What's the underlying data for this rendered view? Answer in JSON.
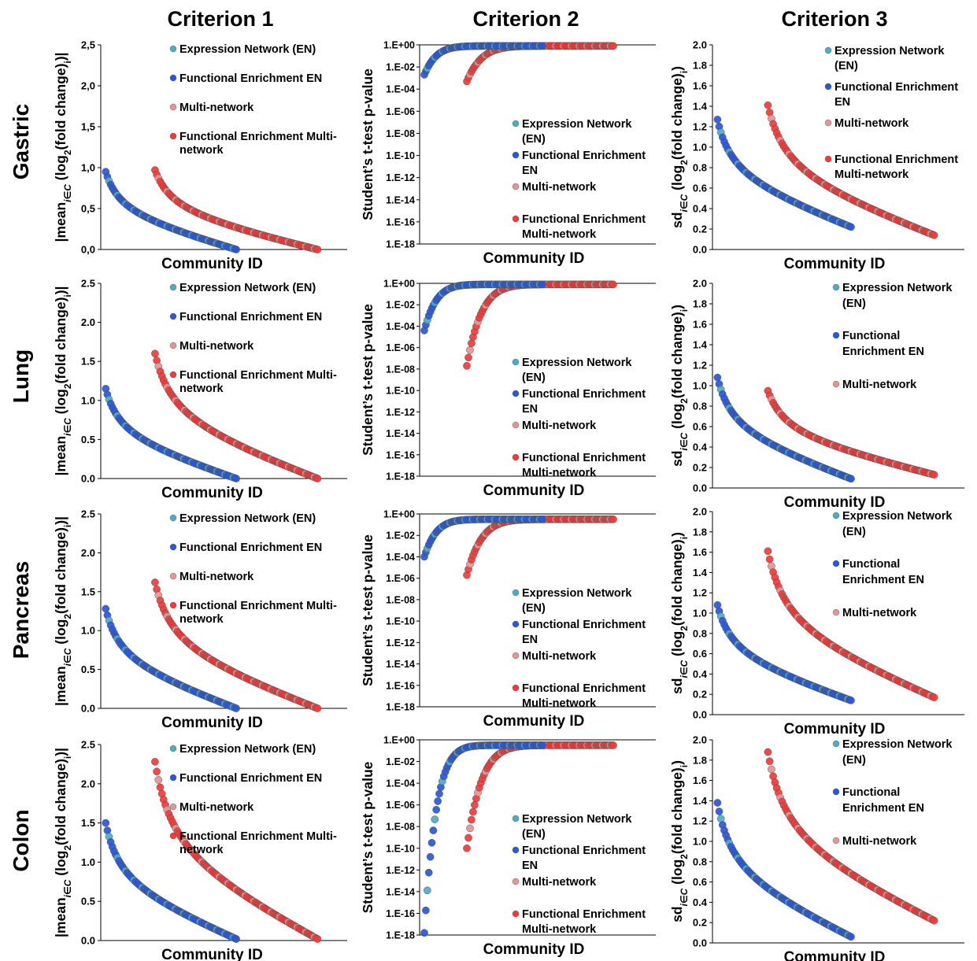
{
  "columns": [
    "Criterion 1",
    "Criterion 2",
    "Criterion 3"
  ],
  "rows": [
    "Gastric",
    "Lung",
    "Pancreas",
    "Colon"
  ],
  "colors": {
    "expression_network": "#4bacc6",
    "functional_enrichment_en": "#2a57d8",
    "multi_network": "#e59494",
    "functional_enrichment_multi": "#f13a3a"
  },
  "x_label": "Community ID",
  "y_label_c1": "|mean",
  "y_label_c1_sub": "i∈C",
  "y_label_c1_rest": " (log",
  "y_label_c1_sub2": "2",
  "y_label_c1_end": "(fold change)",
  "y_label_c1_sub3": "i",
  "y_label_c1_close": ")|",
  "y_label_c2": "Student’s t-test p-value",
  "y_label_c3": "sd",
  "y_label_c3_sub": "i∈C",
  "y_label_c3_rest": " (log",
  "y_label_c3_sub2": "2",
  "y_label_c3_end": "(fold change)",
  "y_label_c3_sub3": "i",
  "y_label_c3_close": ")",
  "legend_c1": [
    "Expression Network (EN)",
    "Functional Enrichment EN",
    "Multi-network",
    "Functional Enrichment Multi-",
    "network"
  ],
  "legend_c2": [
    "Expression Network",
    "(EN)",
    "Functional Enrichment",
    "EN",
    "Multi-network",
    "Functional Enrichment",
    "Multi-network"
  ],
  "legend_c3_gastric": [
    "Expression Network",
    "(EN)",
    "Functional Enrichment",
    "EN",
    "Multi-network",
    "Functional Enrichment",
    "Multi-network"
  ],
  "legend_c3_other": [
    "Expression Network",
    "(EN)",
    "Functional",
    "Enrichment EN",
    "Multi-network"
  ],
  "ticks_c1_gastric": [
    "0,0",
    "0,5",
    "1,0",
    "1,5",
    "2,0",
    "2,5"
  ],
  "ticks_c1_other": [
    "0.0",
    "0.5",
    "1.0",
    "1.5",
    "2.0",
    "2.5"
  ],
  "ticks_c2": [
    "1.E-18",
    "1.E-16",
    "1.E-14",
    "1.E-12",
    "1.E-10",
    "1.E-08",
    "1.E-06",
    "1.E-04",
    "1.E-02",
    "1.E+00"
  ],
  "ticks_c3": [
    "0.0",
    "0.2",
    "0.4",
    "0.6",
    "0.8",
    "1.0",
    "1.2",
    "1.4",
    "1.6",
    "1.8",
    "2.0"
  ],
  "chart_data": [
    {
      "panel": "Gastric / Criterion 1",
      "type": "scatter",
      "ylim": [
        0,
        2.5
      ],
      "series": [
        {
          "legend": "Expression Network (EN) + Functional Enrichment EN",
          "start": 0.95,
          "end": 0.0,
          "shape": 0.15,
          "n": 80
        },
        {
          "legend": "Multi-network + Functional Enrichment Multi-network",
          "start": 0.97,
          "end": 0.0,
          "shape": 0.22,
          "n": 95
        }
      ]
    },
    {
      "panel": "Gastric / Criterion 2",
      "type": "scatter",
      "ylim_log10": [
        -18,
        0
      ],
      "series": [
        {
          "legend": "EN",
          "start_log10": -2.7,
          "end_log10": -0.1,
          "n": 80
        },
        {
          "legend": "Multi-network",
          "start_log10": -3.3,
          "end_log10": -0.1,
          "n": 95
        }
      ]
    },
    {
      "panel": "Gastric / Criterion 3",
      "type": "scatter",
      "ylim": [
        0,
        2.0
      ],
      "series": [
        {
          "legend": "EN",
          "start": 1.27,
          "end": 0.22,
          "n": 80
        },
        {
          "legend": "Multi-network",
          "start": 1.41,
          "end": 0.14,
          "n": 95
        }
      ]
    },
    {
      "panel": "Lung / Criterion 1",
      "type": "scatter",
      "ylim": [
        0,
        2.5
      ],
      "series": [
        {
          "legend": "EN",
          "start": 1.15,
          "end": 0.0,
          "n": 80
        },
        {
          "legend": "Multi-network",
          "start": 1.6,
          "end": 0.0,
          "n": 95
        }
      ]
    },
    {
      "panel": "Lung / Criterion 2",
      "type": "scatter",
      "ylim_log10": [
        -18,
        0
      ],
      "series": [
        {
          "legend": "EN",
          "start_log10": -4.4,
          "end_log10": -0.1,
          "n": 80
        },
        {
          "legend": "Multi-network",
          "start_log10": -7.7,
          "end_log10": -0.1,
          "n": 95
        }
      ]
    },
    {
      "panel": "Lung / Criterion 3",
      "type": "scatter",
      "ylim": [
        0,
        2.0
      ],
      "series": [
        {
          "legend": "EN",
          "start": 1.08,
          "end": 0.09,
          "n": 80
        },
        {
          "legend": "Multi-network",
          "start": 0.95,
          "end": 0.13,
          "n": 95
        }
      ]
    },
    {
      "panel": "Pancreas / Criterion 1",
      "type": "scatter",
      "ylim": [
        0,
        2.5
      ],
      "series": [
        {
          "legend": "EN",
          "start": 1.28,
          "end": 0.0,
          "n": 80
        },
        {
          "legend": "Multi-network",
          "start": 1.62,
          "end": 0.0,
          "n": 95
        }
      ]
    },
    {
      "panel": "Pancreas / Criterion 2",
      "type": "scatter",
      "ylim_log10": [
        -18,
        0
      ],
      "series": [
        {
          "legend": "EN",
          "start_log10": -4.0,
          "end_log10": -0.5,
          "n": 80
        },
        {
          "legend": "Multi-network",
          "start_log10": -5.7,
          "end_log10": -0.5,
          "n": 95
        }
      ]
    },
    {
      "panel": "Pancreas / Criterion 3",
      "type": "scatter",
      "ylim": [
        0,
        2.0
      ],
      "series": [
        {
          "legend": "EN",
          "start": 1.08,
          "end": 0.14,
          "n": 80
        },
        {
          "legend": "Multi-network",
          "start": 1.61,
          "end": 0.17,
          "n": 95
        }
      ]
    },
    {
      "panel": "Colon / Criterion 1",
      "type": "scatter",
      "ylim": [
        0,
        2.5
      ],
      "series": [
        {
          "legend": "EN",
          "start": 1.5,
          "end": 0.02,
          "n": 80
        },
        {
          "legend": "Multi-network",
          "start": 2.28,
          "end": 0.02,
          "n": 95
        }
      ]
    },
    {
      "panel": "Colon / Criterion 2",
      "type": "scatter",
      "ylim_log10": [
        -18,
        0
      ],
      "series": [
        {
          "legend": "EN",
          "start_log10": -17.8,
          "end_log10": -0.5,
          "n": 80
        },
        {
          "legend": "Multi-network",
          "start_log10": -10.0,
          "end_log10": -0.5,
          "n": 95
        }
      ]
    },
    {
      "panel": "Colon / Criterion 3",
      "type": "scatter",
      "ylim": [
        0,
        2.0
      ],
      "series": [
        {
          "legend": "EN",
          "start": 1.38,
          "end": 0.06,
          "n": 80
        },
        {
          "legend": "Multi-network",
          "start": 1.88,
          "end": 0.22,
          "n": 95
        }
      ]
    }
  ]
}
